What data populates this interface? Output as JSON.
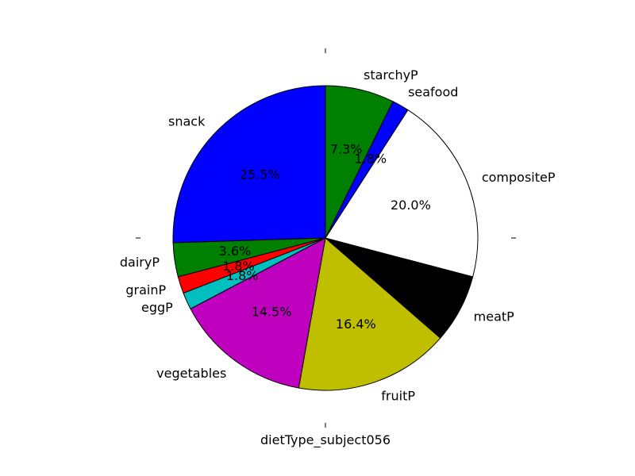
{
  "chart_data": {
    "type": "pie",
    "xlabel": "dietType_subject056",
    "start_angle_deg": 90,
    "direction": "counterclockwise",
    "slices": [
      {
        "label": "snack",
        "value": 25.5,
        "pct_label": "25.5%",
        "color": "#0000ff"
      },
      {
        "label": "dairyP",
        "value": 3.6,
        "pct_label": "3.6%",
        "color": "#008000"
      },
      {
        "label": "grainP",
        "value": 1.8,
        "pct_label": "1.8%",
        "color": "#ff0000"
      },
      {
        "label": "eggP",
        "value": 1.8,
        "pct_label": "1.8%",
        "color": "#00bfbf"
      },
      {
        "label": "vegetables",
        "value": 14.5,
        "pct_label": "14.5%",
        "color": "#bf00bf"
      },
      {
        "label": "fruitP",
        "value": 16.4,
        "pct_label": "16.4%",
        "color": "#bfbf00"
      },
      {
        "label": "meatP",
        "value": 7.3,
        "pct_label": "7.3%",
        "color": "#000000"
      },
      {
        "label": "compositeP",
        "value": 20.0,
        "pct_label": "20.0%",
        "color": "#ffffff"
      },
      {
        "label": "seafood",
        "value": 1.8,
        "pct_label": "1.8%",
        "color": "#0000ff"
      },
      {
        "label": "starchyP",
        "value": 7.3,
        "pct_label": "7.3%",
        "color": "#008000"
      }
    ]
  }
}
